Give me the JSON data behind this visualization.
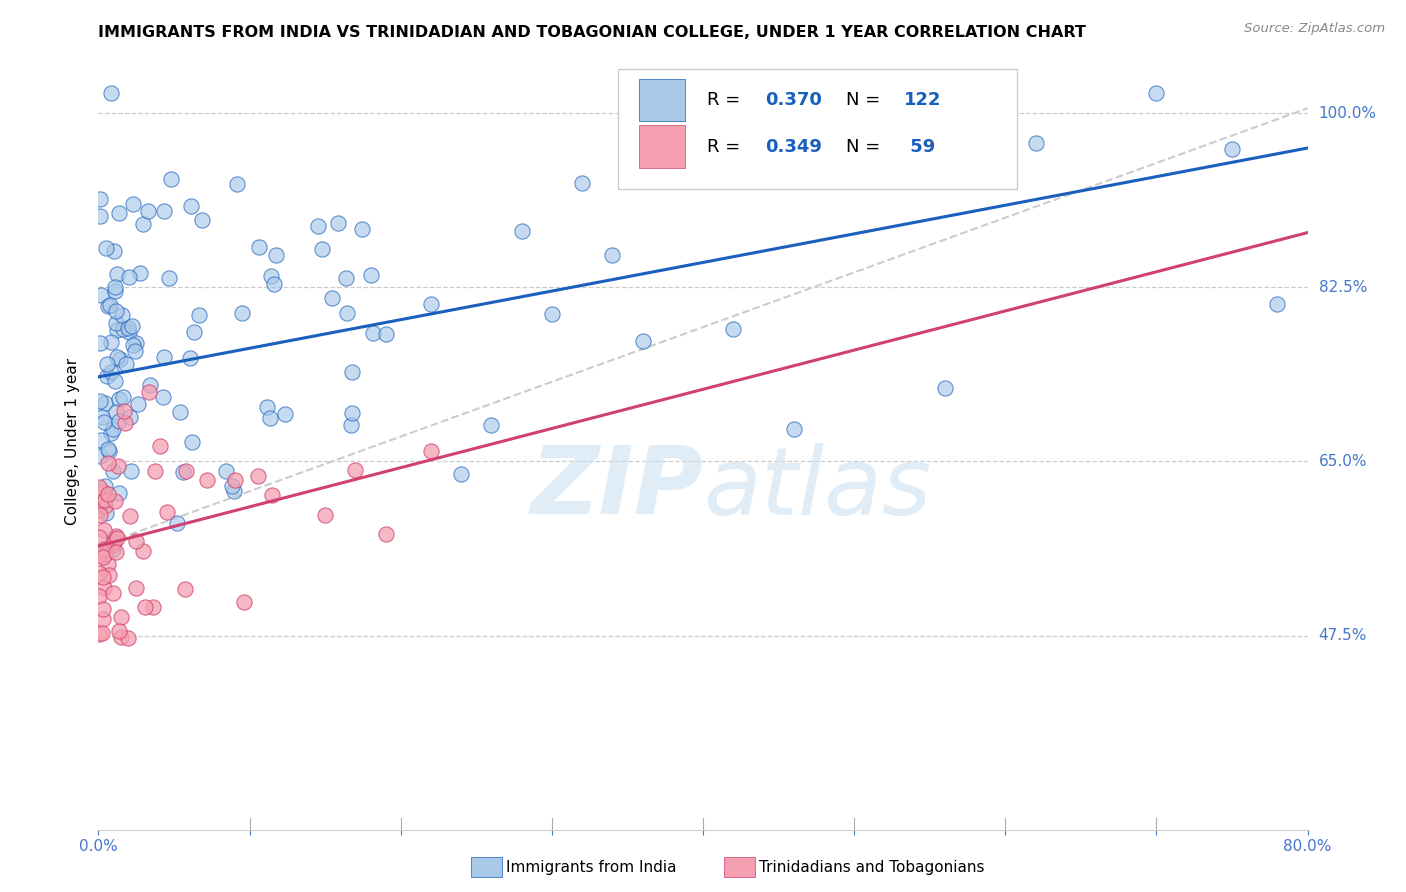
{
  "title": "IMMIGRANTS FROM INDIA VS TRINIDADIAN AND TOBAGONIAN COLLEGE, UNDER 1 YEAR CORRELATION CHART",
  "source": "Source: ZipAtlas.com",
  "ylabel": "College, Under 1 year",
  "watermark": "ZIPatlas",
  "blue_color": "#a8c8e8",
  "pink_color": "#f4a0b0",
  "trend_blue": "#1a5fbd",
  "trend_pink": "#d04070",
  "trend_gray": "#cccccc",
  "india_R": 0.37,
  "india_N": 122,
  "tnt_R": 0.349,
  "tnt_N": 59,
  "xmin": 0.0,
  "xmax": 0.8,
  "ymin": 0.28,
  "ymax": 1.06,
  "yticks": [
    0.475,
    0.65,
    0.825,
    1.0
  ],
  "ytick_labels": [
    "47.5%",
    "65.0%",
    "82.5%",
    "100.0%"
  ],
  "blue_trend_x": [
    0.0,
    0.8
  ],
  "blue_trend_y": [
    0.735,
    0.965
  ],
  "pink_trend_x": [
    0.0,
    0.8
  ],
  "pink_trend_y": [
    0.565,
    0.88
  ],
  "gray_trend_x": [
    0.0,
    0.8
  ],
  "gray_trend_y": [
    0.565,
    1.005
  ],
  "figwidth": 14.06,
  "figheight": 8.92,
  "dpi": 100
}
